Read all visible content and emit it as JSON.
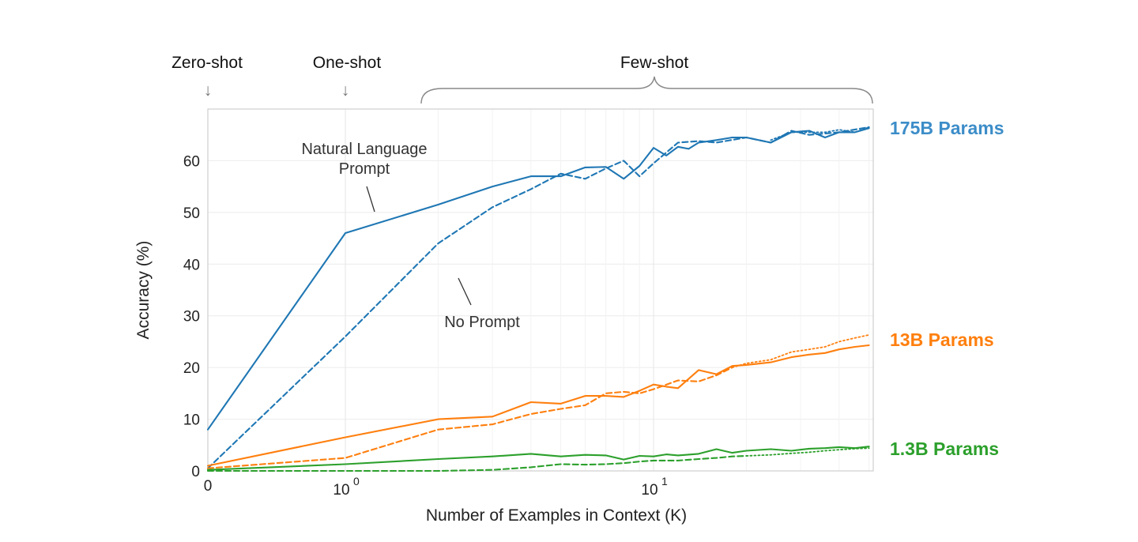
{
  "chart_data": {
    "type": "line",
    "xlabel": "Number of Examples in Context  (K)",
    "ylabel": "Accuracy (%)",
    "x_scale": "symlog",
    "x_tick_labels": [
      "0",
      "10",
      "0",
      "10",
      "1"
    ],
    "y_ticks": [
      0,
      10,
      20,
      30,
      40,
      50,
      60
    ],
    "ylim": [
      0,
      70
    ],
    "xlim": [
      0,
      50
    ],
    "grid": true,
    "phase_labels": {
      "zero_shot": "Zero-shot",
      "one_shot": "One-shot",
      "few_shot": "Few-shot",
      "arrow": "↓"
    },
    "annotations": {
      "natural_language_line1": "Natural Language",
      "natural_language_line2": "Prompt",
      "no_prompt": "No Prompt"
    },
    "groups": [
      {
        "label": "175B Params",
        "color": "#1f77b4"
      },
      {
        "label": "13B Params",
        "color": "#ff7f0e"
      },
      {
        "label": "1.3B Params",
        "color": "#2ca02c"
      }
    ],
    "series": [
      {
        "group": 0,
        "style": "solid",
        "x": [
          0,
          1,
          2,
          3,
          4,
          5,
          6,
          7,
          8,
          9,
          10,
          11,
          12,
          13,
          14,
          16,
          18,
          20,
          24,
          28,
          32,
          36,
          40,
          45,
          50
        ],
        "y": [
          8,
          46,
          51.5,
          55,
          57,
          57,
          58.7,
          58.8,
          56.5,
          59,
          62.5,
          61,
          62.7,
          62.3,
          63.5,
          64,
          64.5,
          64.5,
          63.5,
          65.5,
          65.8,
          64.5,
          65.5,
          65.5,
          66.3
        ]
      },
      {
        "group": 0,
        "style": "dashed",
        "x": [
          0,
          1,
          2,
          3,
          4,
          5,
          6,
          7,
          8,
          9,
          10,
          12,
          14,
          16,
          20,
          24,
          28,
          32,
          40,
          50
        ],
        "y": [
          0.5,
          26,
          44,
          51,
          54.5,
          57.5,
          56.5,
          58.5,
          60,
          57,
          59.5,
          63.5,
          63.8,
          63.5,
          64.5,
          63.5,
          65.8,
          65,
          65.5,
          66.5
        ]
      },
      {
        "group": 0,
        "style": "dotted",
        "x": [
          24,
          28,
          32,
          36,
          40,
          45,
          50
        ],
        "y": [
          64,
          65.5,
          65.5,
          65.5,
          66,
          65.5,
          66.5
        ]
      },
      {
        "group": 1,
        "style": "solid",
        "x": [
          0,
          1,
          2,
          3,
          4,
          5,
          6,
          7,
          8,
          9,
          10,
          11,
          12,
          14,
          16,
          18,
          20,
          24,
          28,
          32,
          36,
          40,
          45,
          50
        ],
        "y": [
          1,
          6.5,
          10,
          10.5,
          13.3,
          13,
          14.5,
          14.5,
          14.3,
          15.5,
          16.7,
          16.3,
          16,
          19.5,
          18.7,
          20.3,
          20.5,
          21,
          22,
          22.5,
          22.8,
          23.5,
          24,
          24.3
        ]
      },
      {
        "group": 1,
        "style": "dashed",
        "x": [
          0,
          1,
          2,
          3,
          4,
          5,
          6,
          7,
          8,
          9,
          10,
          12,
          14,
          16,
          18
        ],
        "y": [
          0.5,
          2.5,
          8,
          9,
          11,
          12,
          12.7,
          15,
          15.3,
          15,
          15.8,
          17.5,
          17.3,
          18.5,
          20
        ]
      },
      {
        "group": 1,
        "style": "dotted",
        "x": [
          18,
          20,
          24,
          28,
          32,
          36,
          40,
          45,
          50
        ],
        "y": [
          20,
          20.8,
          21.5,
          23,
          23.5,
          24,
          25,
          25.7,
          26.3
        ]
      },
      {
        "group": 2,
        "style": "solid",
        "x": [
          0,
          1,
          2,
          3,
          4,
          5,
          6,
          7,
          8,
          9,
          10,
          11,
          12,
          14,
          16,
          18,
          20,
          24,
          28,
          32,
          36,
          40,
          45,
          50
        ],
        "y": [
          0.2,
          1.3,
          2.3,
          2.8,
          3.3,
          2.8,
          3.1,
          3,
          2.2,
          2.9,
          2.8,
          3.2,
          3,
          3.3,
          4.2,
          3.5,
          3.9,
          4.2,
          3.9,
          4.3,
          4.4,
          4.6,
          4.4,
          4.7
        ]
      },
      {
        "group": 2,
        "style": "dashed",
        "x": [
          0,
          1,
          2,
          3,
          4,
          5,
          6,
          7,
          8,
          9,
          10,
          12,
          14,
          16,
          18,
          20
        ],
        "y": [
          0,
          0,
          0,
          0.2,
          0.7,
          1.3,
          1.2,
          1.3,
          1.5,
          1.8,
          2,
          2,
          2.3,
          2.5,
          2.8,
          2.9
        ]
      },
      {
        "group": 2,
        "style": "dotted",
        "x": [
          20,
          24,
          28,
          32,
          36,
          40,
          45,
          50
        ],
        "y": [
          2.9,
          3.1,
          3.4,
          3.6,
          3.9,
          4.1,
          4.3,
          4.4
        ]
      }
    ]
  }
}
